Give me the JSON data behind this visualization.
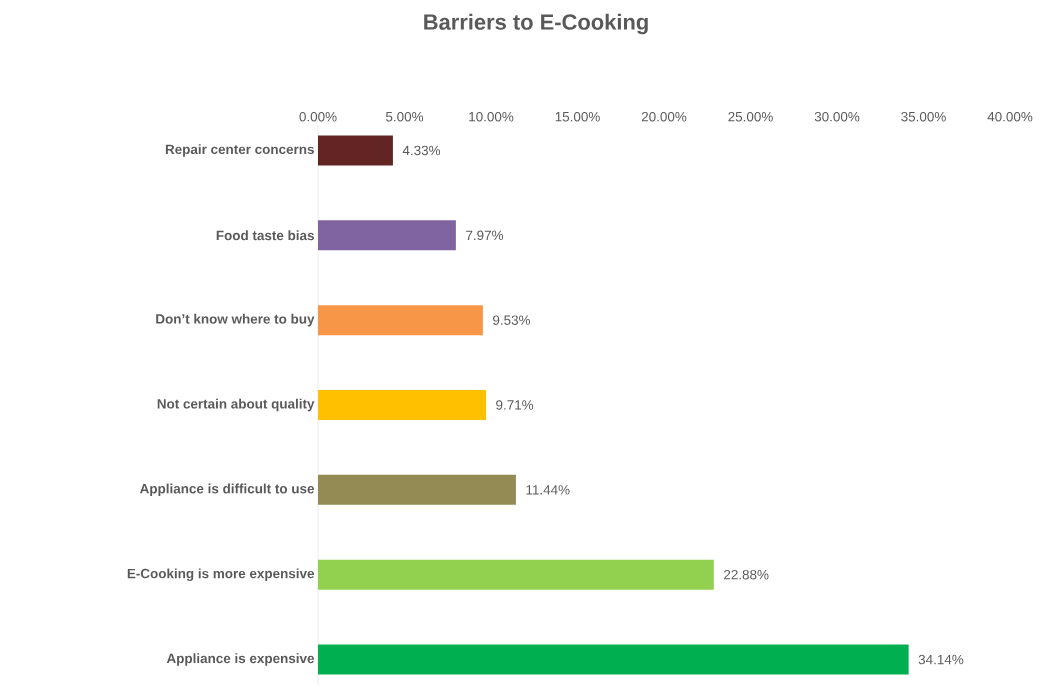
{
  "chart_data": {
    "type": "bar",
    "orientation": "horizontal",
    "title": "Barriers to E-Cooking",
    "categories": [
      "Repair center concerns",
      "Food taste bias",
      "Don’t know where to buy",
      "Not certain about quality",
      "Appliance is difficult to use",
      "E-Cooking is more expensive",
      "Appliance is expensive"
    ],
    "values": [
      4.33,
      7.97,
      9.53,
      9.71,
      11.44,
      22.88,
      34.14
    ],
    "colors": [
      "#632523",
      "#8064a2",
      "#f79646",
      "#ffc000",
      "#948a54",
      "#92d050",
      "#00b050"
    ],
    "value_labels": [
      "4.33%",
      "7.97%",
      "9.53%",
      "9.71%",
      "11.44%",
      "22.88%",
      "34.14%"
    ],
    "xlim": [
      0,
      40
    ],
    "xticks": [
      {
        "value": 0,
        "label": "0.00%"
      },
      {
        "value": 5,
        "label": "5.00%"
      },
      {
        "value": 10,
        "label": "10.00%"
      },
      {
        "value": 15,
        "label": "15.00%"
      },
      {
        "value": 20,
        "label": "20.00%"
      },
      {
        "value": 25,
        "label": "25.00%"
      },
      {
        "value": 30,
        "label": "30.00%"
      },
      {
        "value": 35,
        "label": "35.00%"
      },
      {
        "value": 40,
        "label": "40.00%"
      }
    ]
  }
}
